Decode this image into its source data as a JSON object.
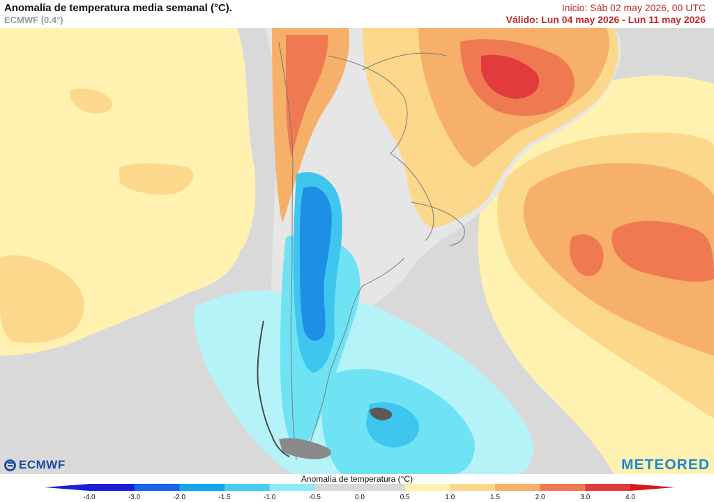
{
  "header": {
    "title": "Anomalía de temperatura media semanal (°C).",
    "model": "ECMWF (0.4°)",
    "init": "Inicio: Sáb 02 may 2026, 00 UTC",
    "valid": "Válido: Lun 04 may 2026 - Lun 11 may 2026"
  },
  "logos": {
    "left": "ECMWF",
    "right": "METEORED",
    "left_icon": "ecmwf-logo-icon"
  },
  "legend": {
    "title": "Anomalía de temperatura (°C)",
    "ticks": [
      "-4.0",
      "-3.0",
      "-2.0",
      "-1.5",
      "-1.0",
      "-0.5",
      "0.0",
      "0.5",
      "1.0",
      "1.5",
      "2.0",
      "3.0",
      "4.0"
    ],
    "colors": [
      "#1a1fd6",
      "#1665e8",
      "#12a6ee",
      "#46cdf2",
      "#8fe9f7",
      "#d8d8d8",
      "#d8d8d8",
      "#fff2b0",
      "#fbd88c",
      "#f6b069",
      "#ef7a52",
      "#e23b3b"
    ],
    "min_color": "#1a1fd6",
    "max_color": "#d61818"
  },
  "map_colors": {
    "ocean_neutral": "#d9d9d9",
    "land": "#e6e6e6",
    "border": "#7a7a7a",
    "warm_light": "#fff2b0",
    "warm_mid": "#fbd88c",
    "warm_orange": "#f6b069",
    "warm_red": "#ef7a52",
    "hot": "#e23b3b",
    "cool_light": "#b6f3f8",
    "cool_cyan": "#6fe3f4",
    "cool_mid": "#3ec6ef",
    "cool_dark": "#1e8fe4"
  }
}
